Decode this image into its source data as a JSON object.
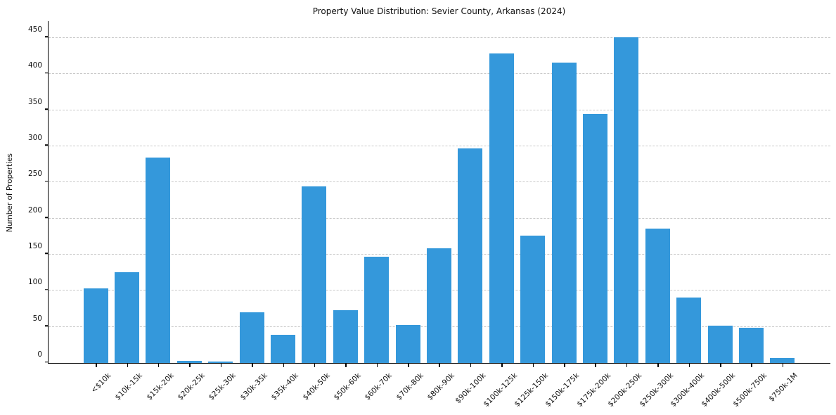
{
  "chart_data": {
    "type": "bar",
    "title": "Property Value Distribution: Sevier County, Arkansas (2024)",
    "xlabel": "",
    "ylabel": "Number of Properties",
    "categories": [
      "<$10k",
      "$10k-15k",
      "$15k-20k",
      "$20k-25k",
      "$25k-30k",
      "$30k-35k",
      "$35k-40k",
      "$40k-50k",
      "$50k-60k",
      "$60k-70k",
      "$70k-80k",
      "$80k-90k",
      "$90k-100k",
      "$100k-125k",
      "$125k-150k",
      "$150k-175k",
      "$175k-200k",
      "$200k-250k",
      "$250k-300k",
      "$300k-400k",
      "$400k-500k",
      "$500k-750k",
      "$750k-1M"
    ],
    "values": [
      103,
      126,
      284,
      3,
      2,
      70,
      39,
      244,
      73,
      147,
      53,
      159,
      297,
      429,
      176,
      416,
      345,
      451,
      186,
      91,
      52,
      49,
      7
    ],
    "yticks": [
      0,
      50,
      100,
      150,
      200,
      250,
      300,
      350,
      400,
      450
    ],
    "ylim": [
      0,
      474
    ],
    "grid": "horizontal-dashed",
    "legend_position": "none",
    "bar_color": "#3498db",
    "gridline_color": "#c9c9c9"
  }
}
